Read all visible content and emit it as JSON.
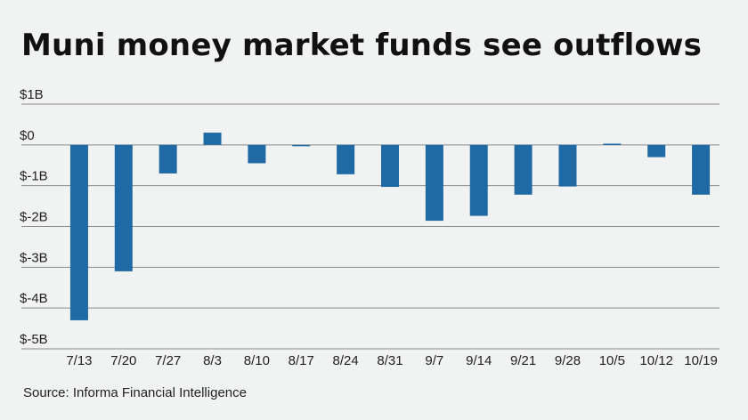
{
  "chart_data": {
    "type": "bar",
    "title": "Muni money market funds see outflows",
    "source": "Source: Informa Financial Intelligence",
    "categories": [
      "7/13",
      "7/20",
      "7/27",
      "8/3",
      "8/10",
      "8/17",
      "8/24",
      "8/31",
      "9/7",
      "9/14",
      "9/21",
      "9/28",
      "10/5",
      "10/12",
      "10/19"
    ],
    "values": [
      -4.3,
      -3.1,
      -0.7,
      0.3,
      -0.45,
      -0.02,
      -0.72,
      -1.03,
      -1.86,
      -1.74,
      -1.22,
      -1.02,
      0.03,
      -0.3,
      -1.22
    ],
    "value_unit": "$ billions",
    "ylim": [
      -5,
      1
    ],
    "yticks": [
      1,
      0,
      -1,
      -2,
      -3,
      -4,
      -5
    ],
    "ytick_labels": [
      "$1B",
      "$0",
      "$-1B",
      "$-2B",
      "$-3B",
      "$-4B",
      "$-5B"
    ],
    "xlabel": "",
    "ylabel": "",
    "grid": true,
    "bar_color": "#1f6aa5",
    "gridline_color": "#8a8a8a",
    "background_color": "#f1f2f2"
  }
}
